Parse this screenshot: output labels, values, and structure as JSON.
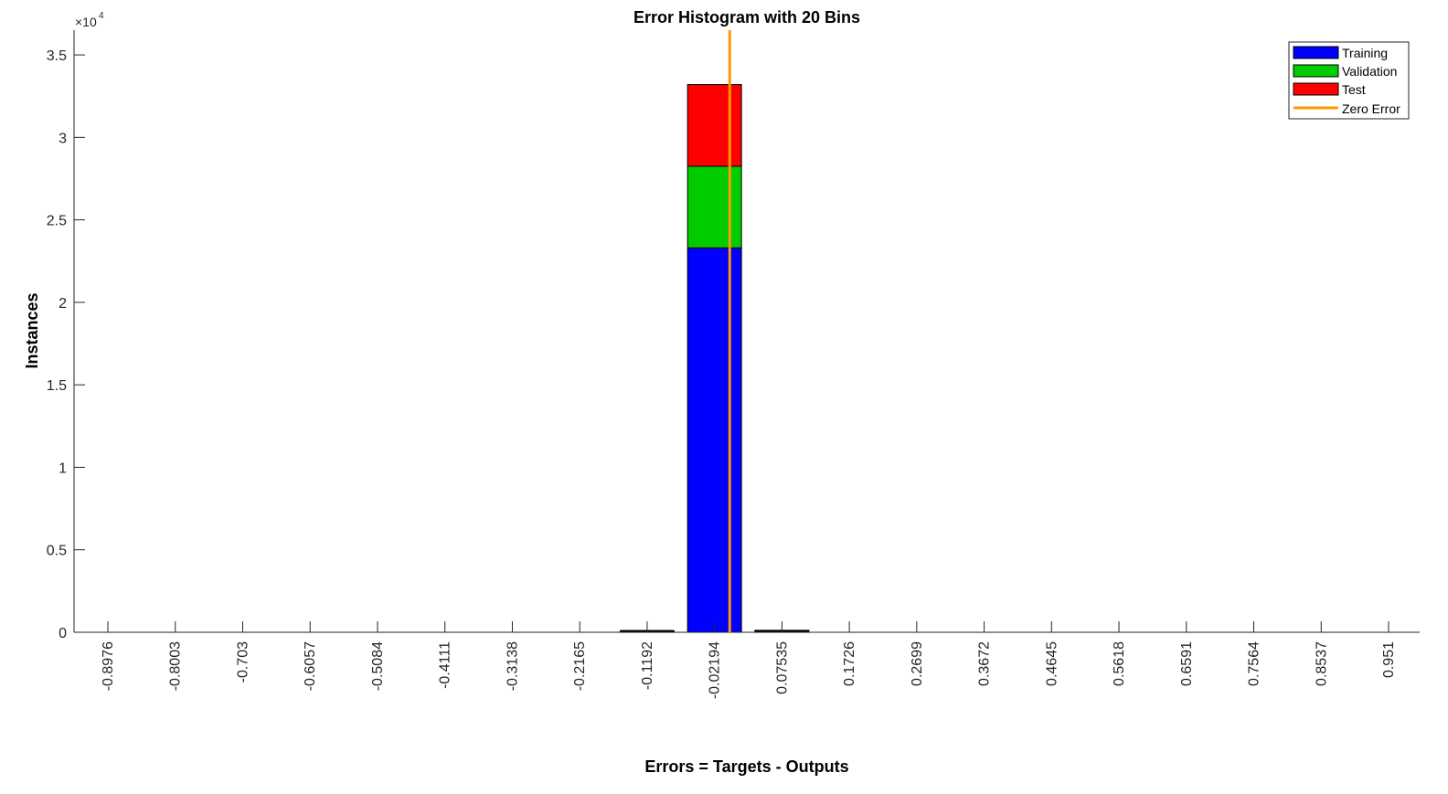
{
  "chart_data": {
    "type": "bar",
    "stacked": true,
    "title": "Error Histogram with 20 Bins",
    "xlabel": "Errors = Targets - Outputs",
    "ylabel": "Instances",
    "y_multiplier_label": "×10",
    "y_multiplier_exponent": "4",
    "ylim": [
      0,
      36500
    ],
    "y_ticks": [
      0,
      5000,
      10000,
      15000,
      20000,
      25000,
      30000,
      35000
    ],
    "y_tick_labels": [
      "0",
      "0.5",
      "1",
      "1.5",
      "2",
      "2.5",
      "3",
      "3.5"
    ],
    "categories": [
      "-0.8976",
      "-0.8003",
      "-0.703",
      "-0.6057",
      "-0.5084",
      "-0.4111",
      "-0.3138",
      "-0.2165",
      "-0.1192",
      "-0.02194",
      "0.07535",
      "0.1726",
      "0.2699",
      "0.3672",
      "0.4645",
      "0.5618",
      "0.6591",
      "0.7564",
      "0.8537",
      "0.951"
    ],
    "bin_centers": [
      -0.8976,
      -0.8003,
      -0.703,
      -0.6057,
      -0.5084,
      -0.4111,
      -0.3138,
      -0.2165,
      -0.1192,
      -0.02194,
      0.07535,
      0.1726,
      0.2699,
      0.3672,
      0.4645,
      0.5618,
      0.6591,
      0.7564,
      0.8537,
      0.951
    ],
    "series": [
      {
        "name": "Training",
        "color": "#0000ff",
        "values": [
          0,
          0,
          0,
          0,
          0,
          0,
          0,
          0,
          50,
          23300,
          80,
          0,
          0,
          0,
          0,
          0,
          0,
          0,
          0,
          0
        ]
      },
      {
        "name": "Validation",
        "color": "#00cc00",
        "values": [
          0,
          0,
          0,
          0,
          0,
          0,
          0,
          0,
          10,
          4950,
          20,
          0,
          0,
          0,
          0,
          0,
          0,
          0,
          0,
          0
        ]
      },
      {
        "name": "Test",
        "color": "#ff0000",
        "values": [
          0,
          0,
          0,
          0,
          0,
          0,
          0,
          0,
          10,
          4950,
          20,
          0,
          0,
          0,
          0,
          0,
          0,
          0,
          0,
          0
        ]
      }
    ],
    "reference_line": {
      "name": "Zero Error",
      "x": 0,
      "color": "#ff9900"
    },
    "legend_placement": "top-right",
    "grid": false
  }
}
